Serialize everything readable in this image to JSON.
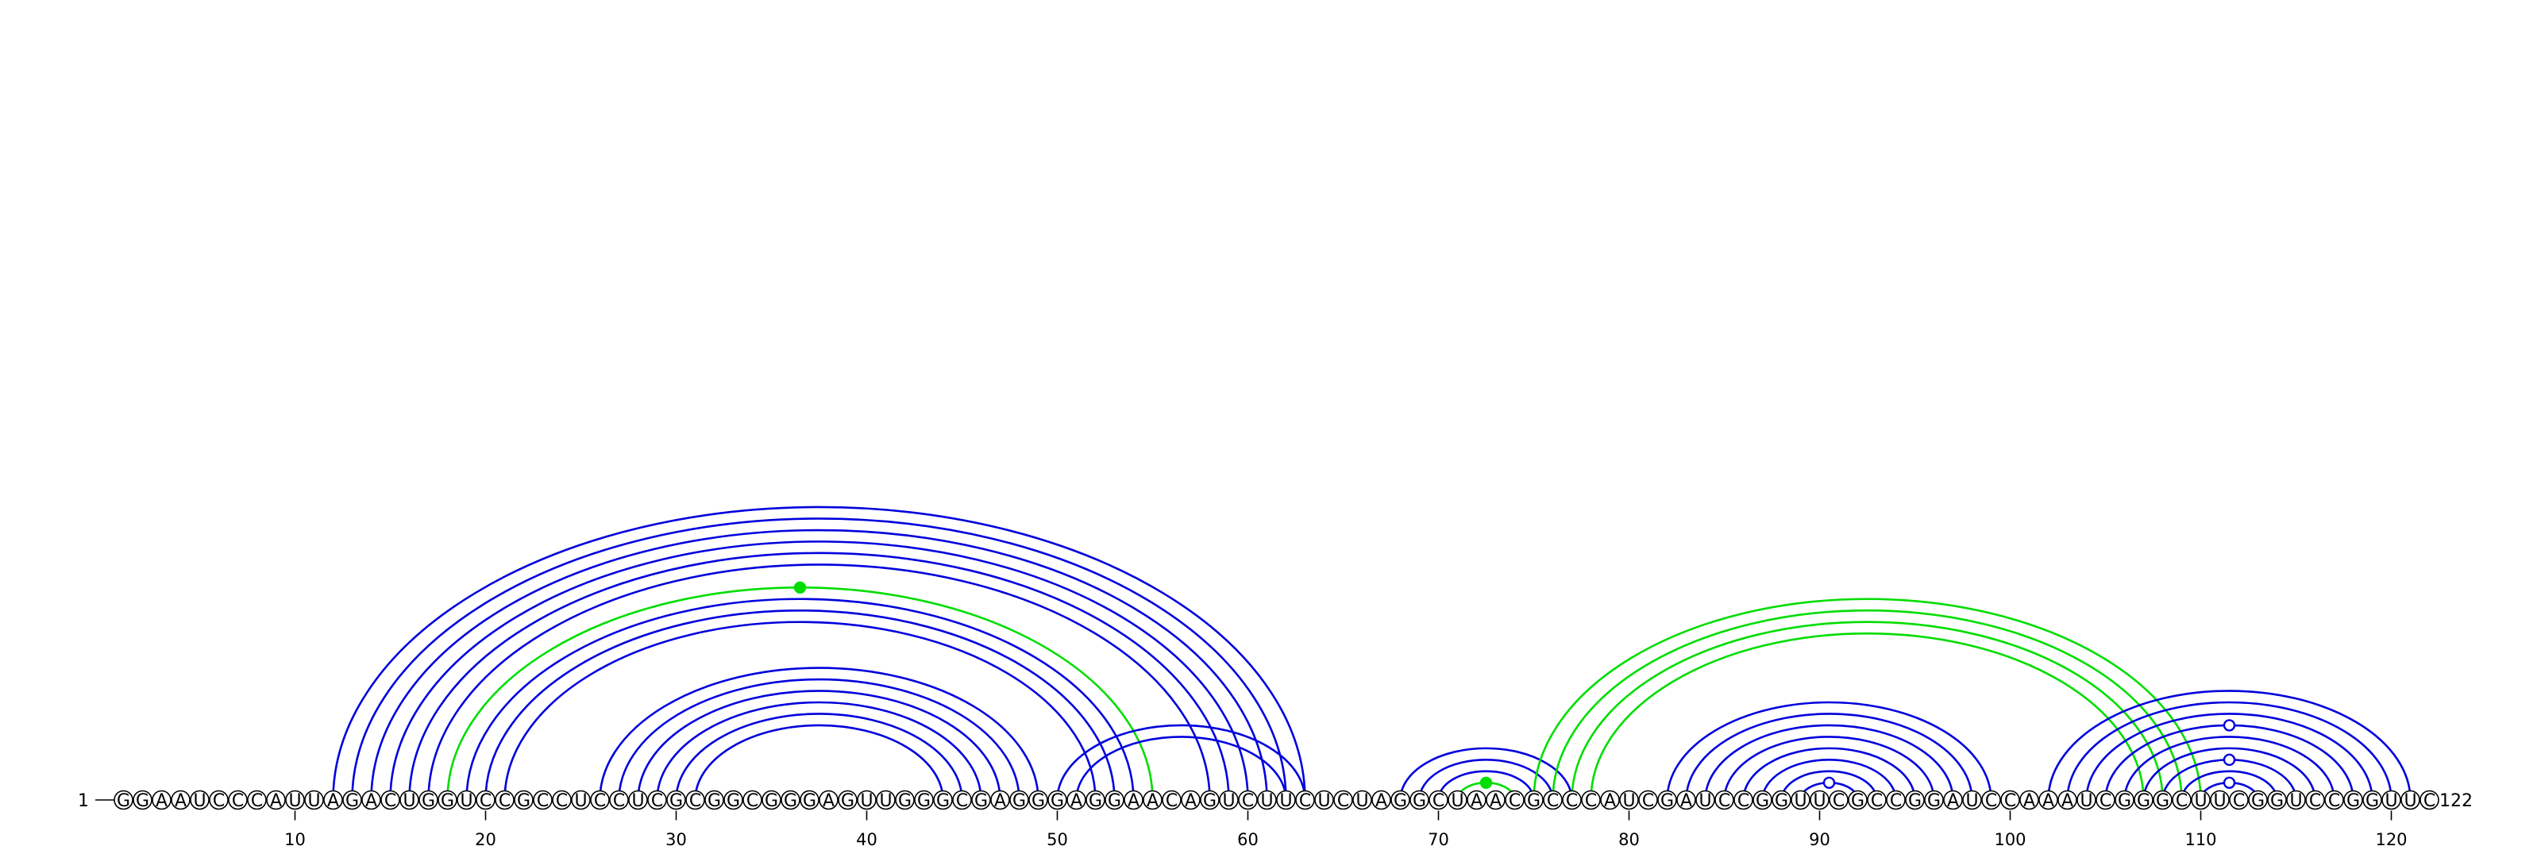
{
  "sequence": "GGAAUCCCAUUAGACUGGUCCGCCUCCUCGCGGCGGGAGUUGGGCGAGGGAGGAACAGUCUUCUCUAGGCUAACGCCCAUCGAUCCGGUUCGCCGGAUCCAAAUCGGGCUUCGGUCCGGUUC",
  "start_label": "1",
  "end_label": "122",
  "ticks": [
    10,
    20,
    30,
    40,
    50,
    60,
    70,
    80,
    90,
    100,
    110,
    120
  ],
  "colors": {
    "blue": "#0000dd",
    "green": "#00dd00",
    "black": "#000000"
  },
  "arcs": [
    {
      "i": 12,
      "j": 63,
      "color": "blue"
    },
    {
      "i": 13,
      "j": 62,
      "color": "blue"
    },
    {
      "i": 14,
      "j": 61,
      "color": "blue"
    },
    {
      "i": 15,
      "j": 60,
      "color": "blue"
    },
    {
      "i": 16,
      "j": 59,
      "color": "blue"
    },
    {
      "i": 17,
      "j": 58,
      "color": "blue"
    },
    {
      "i": 18,
      "j": 55,
      "color": "green"
    },
    {
      "i": 19,
      "j": 54,
      "color": "blue"
    },
    {
      "i": 20,
      "j": 53,
      "color": "blue"
    },
    {
      "i": 21,
      "j": 52,
      "color": "blue"
    },
    {
      "i": 26,
      "j": 49,
      "color": "blue"
    },
    {
      "i": 27,
      "j": 48,
      "color": "blue"
    },
    {
      "i": 28,
      "j": 47,
      "color": "blue"
    },
    {
      "i": 29,
      "j": 46,
      "color": "blue"
    },
    {
      "i": 30,
      "j": 45,
      "color": "blue"
    },
    {
      "i": 31,
      "j": 44,
      "color": "blue"
    },
    {
      "i": 50,
      "j": 63,
      "color": "blue"
    },
    {
      "i": 51,
      "j": 62,
      "color": "blue"
    },
    {
      "i": 68,
      "j": 77,
      "color": "blue"
    },
    {
      "i": 69,
      "j": 76,
      "color": "blue"
    },
    {
      "i": 70,
      "j": 75,
      "color": "blue"
    },
    {
      "i": 71,
      "j": 74,
      "color": "green"
    },
    {
      "i": 75,
      "j": 110,
      "color": "green"
    },
    {
      "i": 76,
      "j": 109,
      "color": "green"
    },
    {
      "i": 77,
      "j": 108,
      "color": "green"
    },
    {
      "i": 78,
      "j": 107,
      "color": "green"
    },
    {
      "i": 82,
      "j": 99,
      "color": "blue"
    },
    {
      "i": 83,
      "j": 98,
      "color": "blue"
    },
    {
      "i": 84,
      "j": 97,
      "color": "blue"
    },
    {
      "i": 85,
      "j": 96,
      "color": "blue"
    },
    {
      "i": 86,
      "j": 95,
      "color": "blue"
    },
    {
      "i": 87,
      "j": 94,
      "color": "blue"
    },
    {
      "i": 88,
      "j": 93,
      "color": "blue"
    },
    {
      "i": 89,
      "j": 92,
      "color": "blue"
    },
    {
      "i": 102,
      "j": 121,
      "color": "blue"
    },
    {
      "i": 103,
      "j": 120,
      "color": "blue"
    },
    {
      "i": 104,
      "j": 119,
      "color": "blue"
    },
    {
      "i": 105,
      "j": 118,
      "color": "blue"
    },
    {
      "i": 106,
      "j": 117,
      "color": "blue"
    },
    {
      "i": 107,
      "j": 116,
      "color": "blue"
    },
    {
      "i": 108,
      "j": 115,
      "color": "blue"
    },
    {
      "i": 109,
      "j": 114,
      "color": "blue"
    },
    {
      "i": 110,
      "j": 113,
      "color": "blue"
    }
  ],
  "markers": [
    {
      "i": 18,
      "j": 55,
      "type": "filled",
      "color": "green"
    },
    {
      "i": 71,
      "j": 74,
      "type": "filled",
      "color": "green"
    },
    {
      "i": 89,
      "j": 92,
      "type": "open",
      "color": "blue"
    },
    {
      "i": 110,
      "j": 113,
      "type": "open",
      "color": "blue"
    },
    {
      "i": 108,
      "j": 115,
      "type": "open",
      "color": "blue"
    },
    {
      "i": 105,
      "j": 118,
      "type": "open",
      "color": "blue"
    }
  ]
}
